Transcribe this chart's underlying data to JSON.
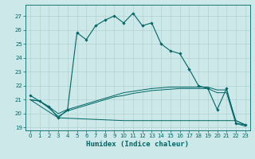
{
  "title": "",
  "xlabel": "Humidex (Indice chaleur)",
  "bg_color": "#cce8e8",
  "grid_color": "#aacccc",
  "line_color": "#006666",
  "xlim": [
    -0.5,
    23.5
  ],
  "ylim": [
    18.8,
    27.8
  ],
  "yticks": [
    19,
    20,
    21,
    22,
    23,
    24,
    25,
    26,
    27
  ],
  "xticks": [
    0,
    1,
    2,
    3,
    4,
    5,
    6,
    7,
    8,
    9,
    10,
    11,
    12,
    13,
    14,
    15,
    16,
    17,
    18,
    19,
    20,
    21,
    22,
    23
  ],
  "series1_x": [
    0,
    1,
    2,
    3,
    4,
    5,
    6,
    7,
    8,
    9,
    10,
    11,
    12,
    13,
    14,
    15,
    16,
    17,
    18,
    19,
    20,
    21,
    22,
    23
  ],
  "series1_y": [
    21.3,
    20.9,
    20.5,
    19.7,
    20.3,
    25.8,
    25.3,
    26.3,
    26.7,
    27.0,
    26.5,
    27.2,
    26.3,
    26.5,
    25.0,
    24.5,
    24.3,
    23.2,
    22.0,
    21.8,
    20.3,
    21.8,
    19.3,
    19.2
  ],
  "series2_x": [
    0,
    1,
    2,
    3,
    4,
    5,
    6,
    7,
    8,
    9,
    10,
    11,
    12,
    13,
    14,
    15,
    16,
    17,
    18,
    19,
    20,
    21,
    22,
    23
  ],
  "series2_y": [
    21.0,
    20.9,
    20.5,
    20.0,
    20.3,
    20.5,
    20.7,
    20.9,
    21.1,
    21.3,
    21.5,
    21.6,
    21.7,
    21.8,
    21.85,
    21.9,
    21.9,
    21.9,
    21.9,
    21.9,
    21.7,
    21.7,
    19.5,
    19.2
  ],
  "series3_x": [
    0,
    1,
    2,
    3,
    4,
    5,
    6,
    7,
    8,
    9,
    10,
    11,
    12,
    13,
    14,
    15,
    16,
    17,
    18,
    19,
    20,
    21,
    22,
    23
  ],
  "series3_y": [
    21.0,
    20.9,
    20.4,
    19.8,
    20.2,
    20.4,
    20.6,
    20.8,
    21.0,
    21.2,
    21.3,
    21.45,
    21.55,
    21.65,
    21.7,
    21.75,
    21.8,
    21.8,
    21.8,
    21.8,
    21.5,
    21.5,
    19.3,
    19.1
  ],
  "series4_x": [
    0,
    3,
    10,
    22,
    23
  ],
  "series4_y": [
    21.0,
    19.7,
    19.5,
    19.5,
    19.2
  ]
}
